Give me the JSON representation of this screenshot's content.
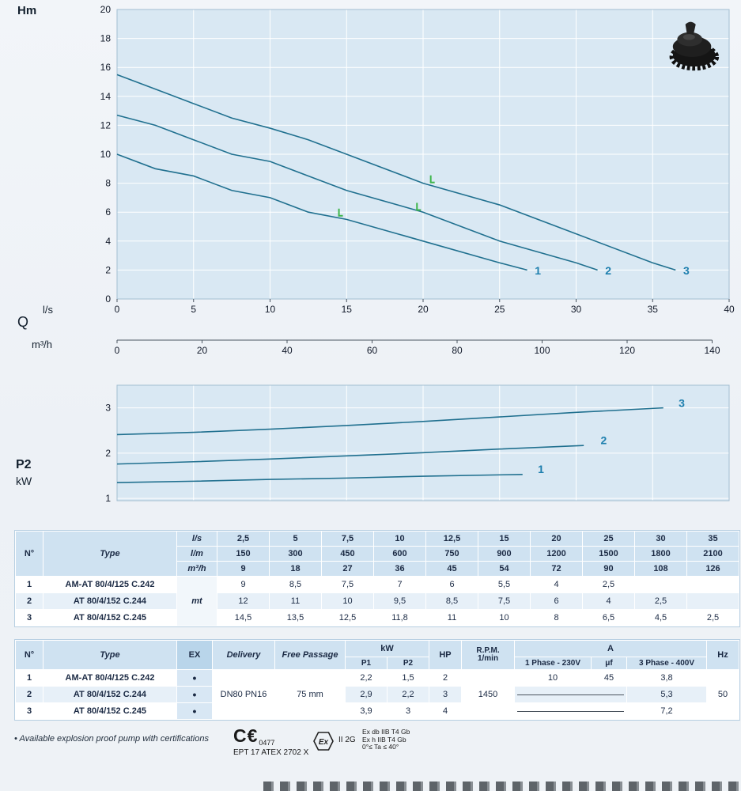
{
  "chart_data": [
    {
      "type": "line",
      "title": "Head / flow curves",
      "ylabel": "Hm",
      "xlabel": "l/s",
      "q_label": "Q",
      "x2label": "m³/h",
      "xlim": [
        0,
        40
      ],
      "ylim": [
        0,
        20
      ],
      "xticks": [
        0,
        5,
        10,
        15,
        20,
        25,
        30,
        35,
        40
      ],
      "yticks": [
        0,
        2,
        4,
        6,
        8,
        10,
        12,
        14,
        16,
        18,
        20
      ],
      "x2ticks": [
        0,
        20,
        40,
        60,
        80,
        100,
        120,
        140
      ],
      "grid": true,
      "legend": "curve numbers at line ends",
      "colors": {
        "plot_bg": "#d9e8f3",
        "grid": "#ffffff",
        "line": "#20708f",
        "label": "#1e7fae",
        "marker": "#3db54a"
      },
      "series": [
        {
          "name": "1",
          "x": [
            0,
            2.5,
            5,
            7.5,
            10,
            12.5,
            15,
            20,
            25,
            26.8
          ],
          "y": [
            10,
            9,
            8.5,
            7.5,
            7,
            6,
            5.5,
            4,
            2.5,
            2
          ],
          "label_x": 27.3,
          "label_y": 1.7
        },
        {
          "name": "2",
          "x": [
            0,
            2.5,
            5,
            7.5,
            10,
            12.5,
            15,
            20,
            25,
            30,
            31.4
          ],
          "y": [
            12.7,
            12,
            11,
            10,
            9.5,
            8.5,
            7.5,
            6,
            4,
            2.5,
            2
          ],
          "label_x": 31.9,
          "label_y": 1.7
        },
        {
          "name": "3",
          "x": [
            0,
            2.5,
            5,
            7.5,
            10,
            12.5,
            15,
            20,
            25,
            30,
            35,
            36.5
          ],
          "y": [
            15.5,
            14.5,
            13.5,
            12.5,
            11.8,
            11,
            10,
            8,
            6.5,
            4.5,
            2.5,
            2
          ],
          "label_x": 37.0,
          "label_y": 1.7
        }
      ],
      "duty_markers": [
        {
          "x": 14.5,
          "y": 5.75
        },
        {
          "x": 19.6,
          "y": 6.15
        },
        {
          "x": 20.5,
          "y": 8.05
        }
      ]
    },
    {
      "type": "line",
      "title": "Absorbed power",
      "ylabel": "P2",
      "ylabel_unit": "kW",
      "xlim": [
        0,
        40
      ],
      "ylim": [
        0.95,
        3.5
      ],
      "yticks": [
        1,
        2,
        3
      ],
      "xticks": [
        0,
        5,
        10,
        15,
        20,
        25,
        30,
        35,
        40
      ],
      "grid": true,
      "colors": {
        "plot_bg": "#d9e8f3",
        "grid": "#ffffff",
        "line": "#20708f",
        "label": "#1e7fae"
      },
      "series": [
        {
          "name": "1",
          "x": [
            0,
            5,
            10,
            15,
            20,
            26.5
          ],
          "y": [
            1.35,
            1.38,
            1.42,
            1.45,
            1.49,
            1.53
          ],
          "label_x": 27.5,
          "label_y": 1.56
        },
        {
          "name": "2",
          "x": [
            0,
            5,
            10,
            15,
            20,
            25,
            30.5
          ],
          "y": [
            1.76,
            1.81,
            1.87,
            1.94,
            2.01,
            2.09,
            2.17
          ],
          "label_x": 31.6,
          "label_y": 2.2
        },
        {
          "name": "3",
          "x": [
            0,
            5,
            10,
            15,
            20,
            25,
            30,
            35.7
          ],
          "y": [
            2.41,
            2.46,
            2.53,
            2.61,
            2.7,
            2.8,
            2.9,
            3.0
          ],
          "label_x": 36.7,
          "label_y": 3.02
        }
      ]
    }
  ],
  "table1": {
    "headers": {
      "n": "N°",
      "type": "Type"
    },
    "unit_rows": [
      {
        "unit": "l/s",
        "values": [
          "2,5",
          "5",
          "7,5",
          "10",
          "12,5",
          "15",
          "20",
          "25",
          "30",
          "35"
        ]
      },
      {
        "unit": "l/m",
        "values": [
          "150",
          "300",
          "450",
          "600",
          "750",
          "900",
          "1200",
          "1500",
          "1800",
          "2100"
        ]
      },
      {
        "unit": "m³/h",
        "values": [
          "9",
          "18",
          "27",
          "36",
          "45",
          "54",
          "72",
          "90",
          "108",
          "126"
        ]
      }
    ],
    "row_unit": "mt",
    "rows": [
      {
        "n": "1",
        "type": "AM-AT 80/4/125 C.242",
        "values": [
          "9",
          "8,5",
          "7,5",
          "7",
          "6",
          "5,5",
          "4",
          "2,5",
          "",
          ""
        ]
      },
      {
        "n": "2",
        "type": "AT 80/4/152 C.244",
        "values": [
          "12",
          "11",
          "10",
          "9,5",
          "8,5",
          "7,5",
          "6",
          "4",
          "2,5",
          ""
        ]
      },
      {
        "n": "3",
        "type": "AT 80/4/152 C.245",
        "values": [
          "14,5",
          "13,5",
          "12,5",
          "11,8",
          "11",
          "10",
          "8",
          "6,5",
          "4,5",
          "2,5"
        ]
      }
    ]
  },
  "table2": {
    "headers": {
      "n": "N°",
      "type": "Type",
      "ex": "EX",
      "delivery": "Delivery",
      "free_passage": "Free Passage",
      "kw": "kW",
      "p1": "P1",
      "p2": "P2",
      "hp": "HP",
      "rpm1": "R.P.M.",
      "rpm2": "1/min",
      "a": "A",
      "phase1": "1 Phase - 230V",
      "uf": "μf",
      "phase3": "3 Phase - 400V",
      "hz": "Hz"
    },
    "shared": {
      "delivery": "DN80 PN16",
      "free_passage": "75 mm",
      "rpm": "1450",
      "hz": "50"
    },
    "ex_dot": "•",
    "rows": [
      {
        "n": "1",
        "type": "AM-AT 80/4/125 C.242",
        "p1": "2,2",
        "p2": "1,5",
        "hp": "2",
        "phase1": "10",
        "uf": "45",
        "phase3": "3,8",
        "na": false
      },
      {
        "n": "2",
        "type": "AT 80/4/152 C.244",
        "p1": "2,9",
        "p2": "2,2",
        "hp": "3",
        "phase1": "",
        "uf": "",
        "phase3": "5,3",
        "na": true
      },
      {
        "n": "3",
        "type": "AT 80/4/152 C.245",
        "p1": "3,9",
        "p2": "3",
        "hp": "4",
        "phase1": "",
        "uf": "",
        "phase3": "7,2",
        "na": true
      }
    ]
  },
  "footer": {
    "note": "• Available explosion proof pump with certifications",
    "ce_mark": "C€",
    "ce_number": "0477",
    "atex_code": "EPT 17 ATEX 2702 X",
    "ex_symbol": "Ex",
    "ex_class": "II 2G",
    "cert_lines": [
      "Ex db IIB T4 Gb",
      "Ex h IIB T4 Gb",
      "0°≤ Ta ≤ 40°"
    ]
  }
}
